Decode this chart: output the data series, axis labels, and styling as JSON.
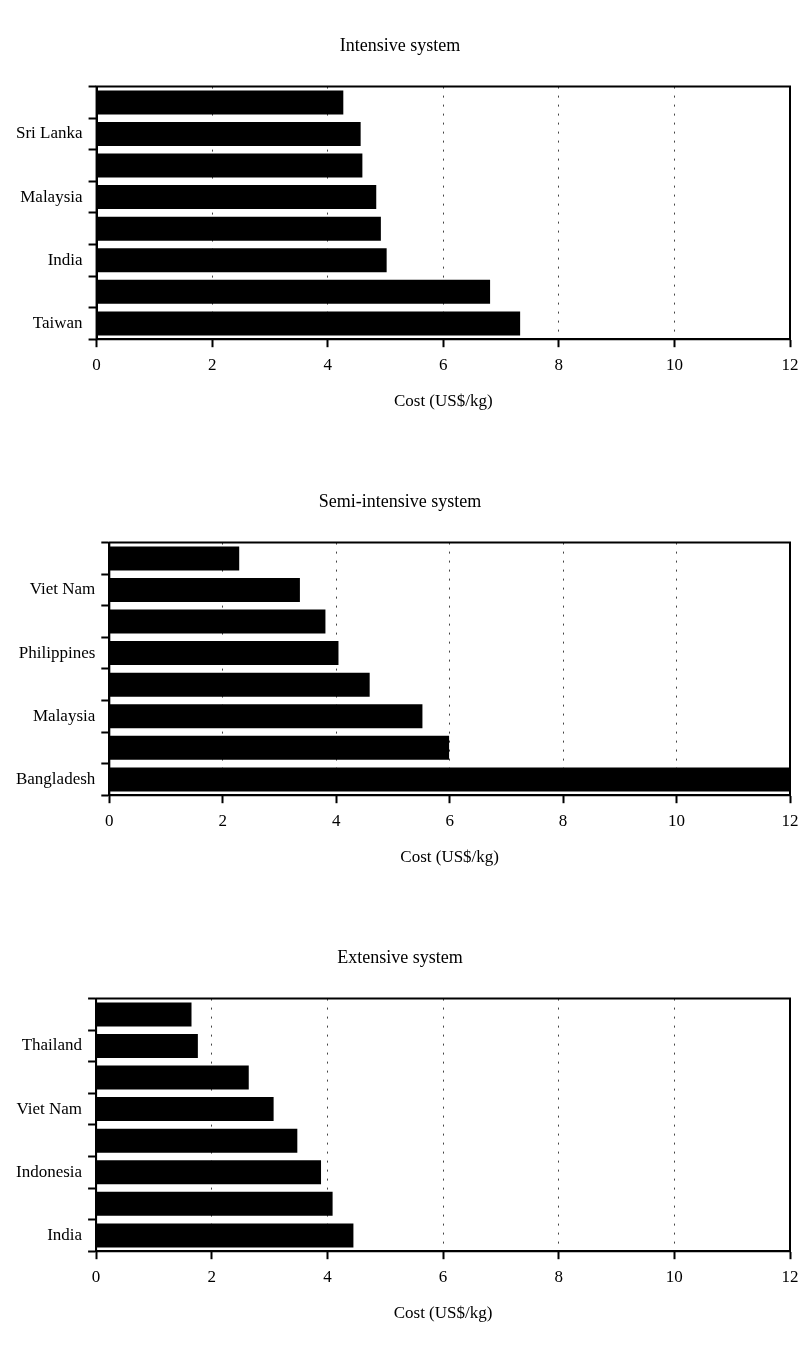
{
  "chart_data": [
    {
      "type": "bar",
      "orientation": "horizontal",
      "title": "Intensive system",
      "xlabel": "Cost (US$/kg)",
      "categories": [
        null,
        "Sri Lanka",
        null,
        "Malaysia",
        null,
        "India",
        null,
        "Taiwan"
      ],
      "values": [
        4.27,
        4.57,
        4.6,
        4.84,
        4.92,
        5.02,
        6.81,
        7.33
      ],
      "color": "#000000",
      "xlim": [
        0,
        12
      ],
      "xticks": [
        0,
        2,
        4,
        6,
        8,
        10,
        12
      ],
      "grid": "x",
      "legend": false
    },
    {
      "type": "bar",
      "orientation": "horizontal",
      "title": "Semi-intensive system",
      "xlabel": "Cost (US$/kg)",
      "categories": [
        null,
        "Viet Nam",
        null,
        "Philippines",
        null,
        "Malaysia",
        null,
        "Bangladesh"
      ],
      "values": [
        2.29,
        3.36,
        3.81,
        4.04,
        4.59,
        5.52,
        5.99,
        12
      ],
      "color": "#000000",
      "xlim": [
        0,
        12
      ],
      "xticks": [
        0,
        2,
        4,
        6,
        8,
        10,
        12
      ],
      "grid": "x",
      "legend": false
    },
    {
      "type": "bar",
      "orientation": "horizontal",
      "title": "Extensive system",
      "xlabel": "Cost (US$/kg)",
      "categories": [
        null,
        "Thailand",
        null,
        "Viet Nam",
        null,
        "Indonesia",
        null,
        "India"
      ],
      "values": [
        1.65,
        1.76,
        2.64,
        3.07,
        3.48,
        3.89,
        4.09,
        4.45
      ],
      "color": "#000000",
      "xlim": [
        0,
        12
      ],
      "xticks": [
        0,
        2,
        4,
        6,
        8,
        10,
        12
      ],
      "grid": "x",
      "legend": false
    }
  ]
}
